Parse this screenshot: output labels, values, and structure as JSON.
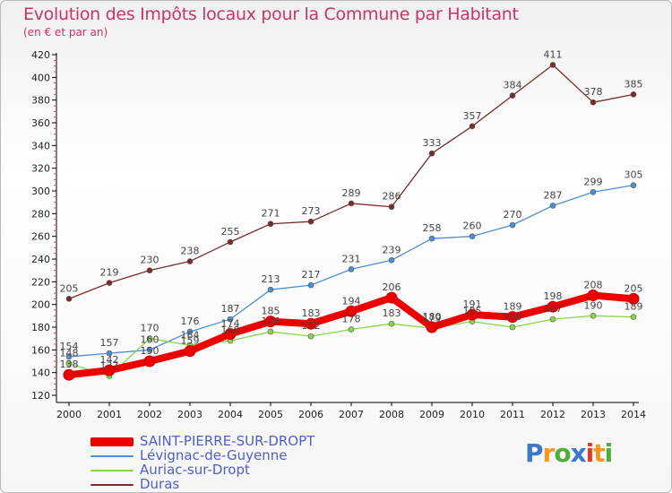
{
  "title": "Evolution des Impôts locaux pour la Commune par Habitant",
  "subtitle": "(en € et par an)",
  "logo_text": "Proxiti",
  "chart_data": {
    "type": "line",
    "x": [
      "2000",
      "2001",
      "2002",
      "2003",
      "2004",
      "2005",
      "2006",
      "2007",
      "2008",
      "2009",
      "2010",
      "2011",
      "2012",
      "2013",
      "2014"
    ],
    "ylim": [
      120,
      420
    ],
    "yticks": [
      120,
      140,
      160,
      180,
      200,
      220,
      240,
      260,
      280,
      300,
      320,
      340,
      360,
      380,
      400,
      420
    ],
    "grid": false,
    "legend_position": "bottom-left",
    "series": [
      {
        "name": "SAINT-PIERRE-SUR-DROPT",
        "color": "#ee0000",
        "values": [
          138,
          142,
          150,
          159,
          174,
          185,
          183,
          194,
          206,
          180,
          191,
          189,
          198,
          208,
          205
        ]
      },
      {
        "name": "Lévignac-de-Guyenne",
        "color": "#4d8fd1",
        "values": [
          154,
          157,
          160,
          176,
          187,
          213,
          217,
          231,
          239,
          258,
          260,
          270,
          287,
          299,
          305
        ]
      },
      {
        "name": "Auriac-sur-Dropt",
        "color": "#8ad44e",
        "values": [
          148,
          137,
          170,
          164,
          168,
          176,
          172,
          178,
          183,
          179,
          185,
          180,
          187,
          190,
          189
        ]
      },
      {
        "name": "Duras",
        "color": "#7a2b2b",
        "values": [
          205,
          219,
          230,
          238,
          255,
          271,
          273,
          289,
          286,
          333,
          357,
          384,
          411,
          378,
          385
        ]
      }
    ]
  }
}
